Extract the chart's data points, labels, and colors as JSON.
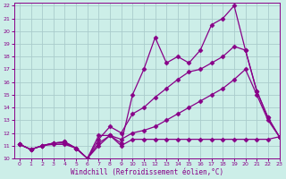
{
  "title": "",
  "xlabel": "Windchill (Refroidissement éolien,°C)",
  "ylabel": "",
  "bg_color": "#cceee8",
  "grid_color": "#aacccc",
  "line_color": "#880088",
  "xlim": [
    -0.5,
    23
  ],
  "ylim": [
    10,
    22.2
  ],
  "xticks": [
    0,
    1,
    2,
    3,
    4,
    5,
    6,
    7,
    8,
    9,
    10,
    11,
    12,
    13,
    14,
    15,
    16,
    17,
    18,
    19,
    20,
    21,
    22,
    23
  ],
  "yticks": [
    10,
    11,
    12,
    13,
    14,
    15,
    16,
    17,
    18,
    19,
    20,
    21,
    22
  ],
  "series": [
    {
      "x": [
        0,
        1,
        2,
        3,
        4,
        5,
        6,
        7,
        8,
        9,
        10,
        11,
        12,
        13,
        14,
        15,
        16,
        17,
        18,
        19,
        20,
        21,
        22,
        23
      ],
      "y": [
        11.1,
        10.7,
        11.0,
        11.1,
        11.1,
        10.8,
        10.0,
        11.0,
        11.8,
        11.0,
        11.5,
        11.5,
        11.5,
        11.5,
        11.5,
        11.5,
        11.5,
        11.5,
        11.5,
        11.5,
        11.5,
        11.5,
        11.5,
        11.7
      ]
    },
    {
      "x": [
        0,
        1,
        2,
        3,
        4,
        5,
        6,
        7,
        8,
        9,
        10,
        11,
        12,
        13,
        14,
        15,
        16,
        17,
        18,
        19,
        20,
        21,
        22,
        23
      ],
      "y": [
        11.1,
        10.7,
        11.0,
        11.2,
        11.2,
        10.8,
        10.0,
        11.2,
        11.8,
        11.5,
        12.0,
        12.2,
        12.5,
        13.0,
        13.5,
        14.0,
        14.5,
        15.0,
        15.5,
        16.2,
        17.0,
        15.0,
        13.0,
        11.7
      ]
    },
    {
      "x": [
        0,
        1,
        2,
        3,
        4,
        5,
        6,
        7,
        8,
        9,
        10,
        11,
        12,
        13,
        14,
        15,
        16,
        17,
        18,
        19,
        20,
        21,
        22,
        23
      ],
      "y": [
        11.1,
        10.7,
        11.0,
        11.2,
        11.3,
        10.8,
        10.0,
        11.5,
        12.5,
        12.0,
        13.5,
        14.0,
        14.8,
        15.5,
        16.2,
        16.8,
        17.0,
        17.5,
        18.0,
        18.8,
        18.5,
        15.3,
        13.2,
        11.7
      ]
    },
    {
      "x": [
        0,
        1,
        2,
        3,
        4,
        5,
        6,
        7,
        8,
        9,
        10,
        11,
        12,
        13,
        14,
        15,
        16,
        17,
        18,
        19,
        20,
        21,
        22,
        23
      ],
      "y": [
        11.1,
        10.7,
        11.0,
        11.2,
        11.3,
        10.8,
        10.0,
        11.8,
        11.8,
        11.2,
        15.0,
        17.0,
        19.5,
        17.5,
        18.0,
        17.5,
        18.5,
        20.5,
        21.0,
        22.0,
        18.5,
        15.3,
        13.2,
        11.7
      ]
    }
  ]
}
